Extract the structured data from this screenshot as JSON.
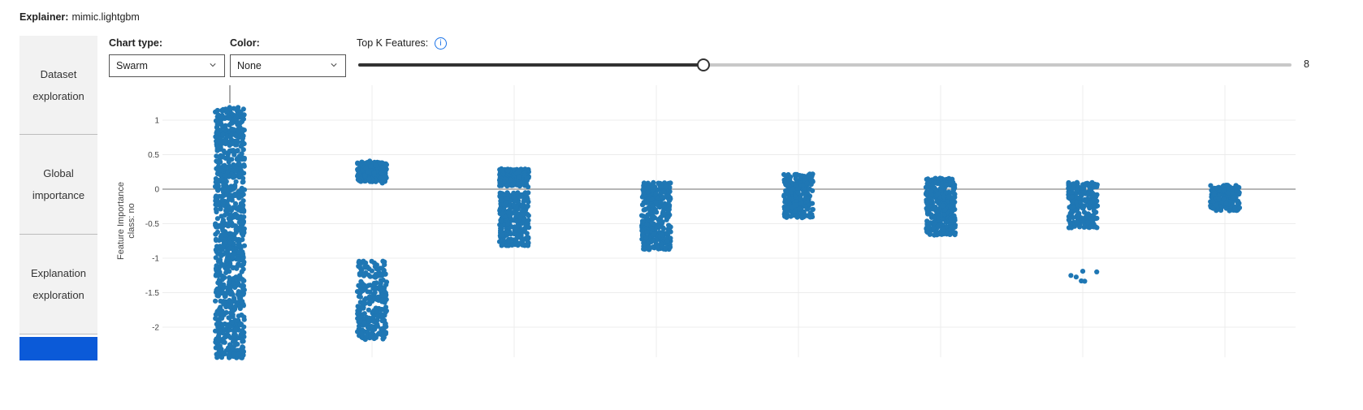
{
  "header": {
    "explainer_label": "Explainer:",
    "explainer_value": "mimic.lightgbm"
  },
  "nav": {
    "items": [
      {
        "line1": "Dataset",
        "line2": "exploration"
      },
      {
        "line1": "Global",
        "line2": "importance"
      },
      {
        "line1": "Explanation",
        "line2": "exploration"
      }
    ],
    "active_color": "#0b5ad8"
  },
  "controls": {
    "chart_type_label": "Chart type:",
    "chart_type_value": "Swarm",
    "color_label": "Color:",
    "color_value": "None",
    "topk_label": "Top K Features:",
    "topk_value": "8",
    "topk_fraction": 0.37,
    "info_icon": "info-icon"
  },
  "chart_data": {
    "type": "scatter",
    "subtype": "swarm",
    "ylabel_line1": "Feature Importance",
    "ylabel_line2": "class:  no",
    "yticks": [
      "1",
      "0.5",
      "0",
      "-0.5",
      "-1",
      "-1.5",
      "-2"
    ],
    "ytick_values": [
      1,
      0.5,
      0,
      -0.5,
      -1,
      -1.5,
      -2
    ],
    "ylim": [
      -2.45,
      1.3
    ],
    "grid": true,
    "marker_color": "#1f77b4",
    "features": [
      {
        "index": 1,
        "clusters": [
          {
            "min": -2.45,
            "max": 1.2,
            "n": 900
          }
        ]
      },
      {
        "index": 2,
        "clusters": [
          {
            "min": 0.08,
            "max": 0.42,
            "n": 220
          },
          {
            "min": -2.18,
            "max": -1.04,
            "n": 260
          }
        ]
      },
      {
        "index": 3,
        "clusters": [
          {
            "min": 0.02,
            "max": 0.32,
            "n": 200
          },
          {
            "min": -0.82,
            "max": -0.05,
            "n": 300
          }
        ]
      },
      {
        "index": 4,
        "clusters": [
          {
            "min": -0.88,
            "max": 0.1,
            "n": 380
          }
        ]
      },
      {
        "index": 5,
        "clusters": [
          {
            "min": -0.42,
            "max": 0.22,
            "n": 260
          }
        ]
      },
      {
        "index": 6,
        "clusters": [
          {
            "min": -0.67,
            "max": 0.16,
            "n": 320
          }
        ]
      },
      {
        "index": 7,
        "clusters": [
          {
            "min": -0.56,
            "max": 0.1,
            "n": 220
          },
          {
            "min": -1.35,
            "max": -1.15,
            "n": 6
          }
        ]
      },
      {
        "index": 8,
        "clusters": [
          {
            "min": -0.35,
            "max": 0.1,
            "n": 180
          }
        ]
      }
    ]
  }
}
